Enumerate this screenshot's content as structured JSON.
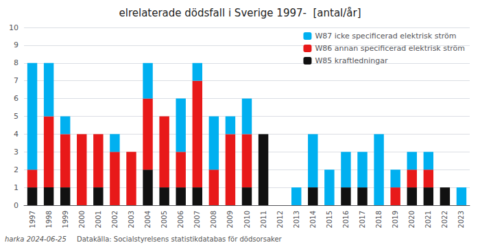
{
  "chart_data": {
    "type": "bar",
    "title": "elrelaterade dödsfall i Sverige 1997-  [antal/år]",
    "categories": [
      "1997",
      "1998",
      "1999",
      "2000",
      "2001",
      "2002",
      "2003",
      "2004",
      "2005",
      "2006",
      "2007",
      "2008",
      "2009",
      "2010",
      "2011",
      "2012",
      "2013",
      "2014",
      "2015",
      "2016",
      "2017",
      "2018",
      "2019",
      "2020",
      "2021",
      "2022",
      "2023"
    ],
    "series": [
      {
        "name": "W85 kraftledningar",
        "color": "#111111",
        "values": [
          1,
          1,
          1,
          0,
          1,
          0,
          0,
          2,
          1,
          1,
          1,
          0,
          0,
          1,
          4,
          0,
          0,
          1,
          0,
          1,
          1,
          0,
          0,
          1,
          1,
          1,
          0
        ]
      },
      {
        "name": "W86 annan specificerad elektrisk ström",
        "color": "#e81919",
        "values": [
          1,
          4,
          3,
          4,
          3,
          3,
          3,
          4,
          4,
          2,
          6,
          2,
          4,
          3,
          0,
          0,
          0,
          0,
          0,
          0,
          0,
          0,
          1,
          1,
          1,
          0,
          0
        ]
      },
      {
        "name": "W87 icke specificerad elektrisk ström",
        "color": "#00b0f0",
        "values": [
          6,
          3,
          1,
          0,
          0,
          1,
          0,
          2,
          0,
          3,
          1,
          3,
          1,
          2,
          0,
          0,
          1,
          3,
          2,
          2,
          2,
          4,
          1,
          1,
          1,
          0,
          1
        ]
      }
    ],
    "stacked": true,
    "ylim": [
      0,
      10
    ],
    "yticks": [
      0,
      1,
      2,
      3,
      4,
      5,
      6,
      7,
      8,
      9,
      10
    ],
    "grid": true,
    "legend": "upper right",
    "annotations": [
      "harka 2024-06-25",
      "Datakälla: Socialstyrelsens statistikdatabas för dödsorsaker"
    ]
  }
}
